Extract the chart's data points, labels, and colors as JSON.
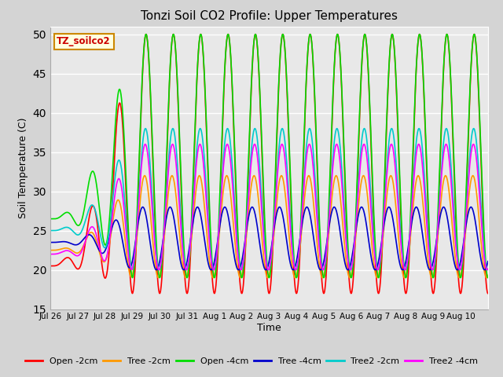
{
  "title": "Tonzi Soil CO2 Profile: Upper Temperatures",
  "xlabel": "Time",
  "ylabel": "Soil Temperature (C)",
  "ylim": [
    15,
    51
  ],
  "yticks": [
    15,
    20,
    25,
    30,
    35,
    40,
    45,
    50
  ],
  "fig_facecolor": "#d4d4d4",
  "plot_facecolor": "#e8e8e8",
  "grid_color": "white",
  "text_box_label": "TZ_soilco2",
  "series": [
    {
      "label": "Open -2cm",
      "color": "#ff0000",
      "lw": 1.2,
      "amp_min": 17,
      "amp_max": 50,
      "phase": 0.0,
      "init": 20.5
    },
    {
      "label": "Tree -2cm",
      "color": "#ff9900",
      "lw": 1.2,
      "amp_min": 19,
      "amp_max": 32,
      "phase": 0.05,
      "init": 22.5
    },
    {
      "label": "Open -4cm",
      "color": "#00dd00",
      "lw": 1.2,
      "amp_min": 19,
      "amp_max": 50,
      "phase": 0.0,
      "init": 26.5
    },
    {
      "label": "Tree -4cm",
      "color": "#0000cc",
      "lw": 1.2,
      "amp_min": 20,
      "amp_max": 28,
      "phase": 0.12,
      "init": 23.5
    },
    {
      "label": "Tree2 -2cm",
      "color": "#00cccc",
      "lw": 1.2,
      "amp_min": 20,
      "amp_max": 38,
      "phase": 0.02,
      "init": 25.0
    },
    {
      "label": "Tree2 -4cm",
      "color": "#ff00ff",
      "lw": 1.2,
      "amp_min": 20,
      "amp_max": 36,
      "phase": 0.03,
      "init": 22.0
    }
  ],
  "n_days": 16,
  "pts_per_day": 96,
  "warmup_days": 3,
  "tick_labels": [
    "Jul 26",
    "Jul 27",
    "Jul 28",
    "Jul 29",
    "Jul 30",
    "Jul 31",
    "Aug 1",
    "Aug 2",
    "Aug 3",
    "Aug 4",
    "Aug 5",
    "Aug 6",
    "Aug 7",
    "Aug 8",
    "Aug 9",
    "Aug 10"
  ],
  "legend_ncol": 6,
  "figsize": [
    6.4,
    4.8
  ],
  "dpi": 100
}
